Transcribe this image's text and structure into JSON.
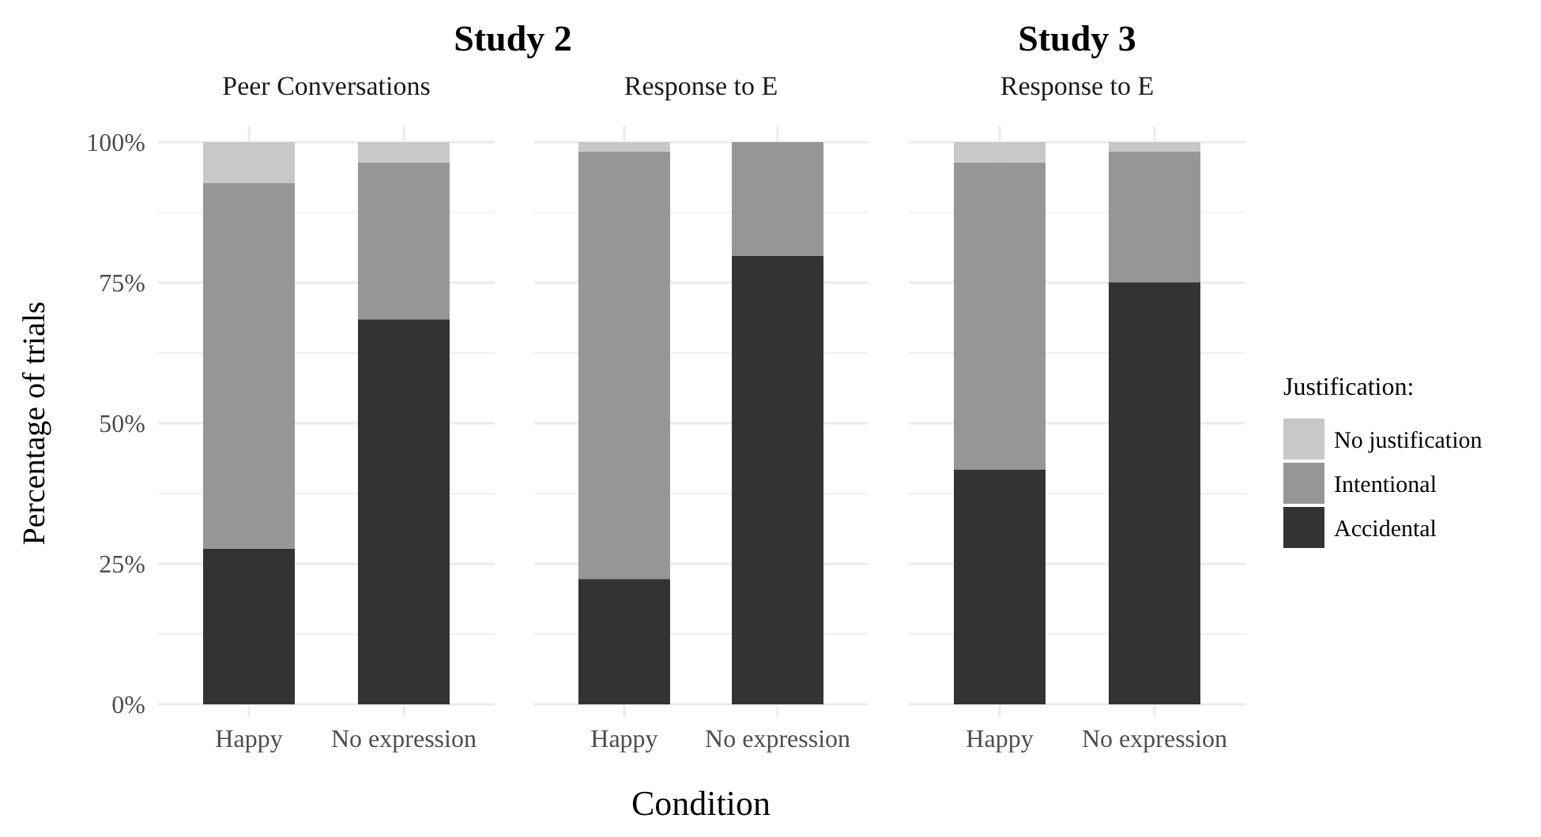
{
  "chart_data": [
    {
      "type": "bar",
      "title": "Study 2",
      "subtitle": "Peer Conversations",
      "ylabel": "Percentage of trials",
      "categories": [
        "Happy",
        "No expression"
      ],
      "stacked": true,
      "ylim": [
        0,
        100
      ],
      "yticks": [
        {
          "value": 0,
          "label": "0%"
        },
        {
          "value": 12.5,
          "label": null
        },
        {
          "value": 25,
          "label": "25%"
        },
        {
          "value": 37.5,
          "label": null
        },
        {
          "value": 50,
          "label": "50%"
        },
        {
          "value": 62.5,
          "label": null
        },
        {
          "value": 75,
          "label": "75%"
        },
        {
          "value": 87.5,
          "label": null
        },
        {
          "value": 100,
          "label": "100%"
        }
      ],
      "grid": true,
      "legend": false,
      "series": [
        {
          "color": "#333333",
          "values": [
            27.7,
            68.5
          ]
        },
        {
          "color": "#969696",
          "values": [
            65.0,
            27.9
          ]
        },
        {
          "color": "#c8c8c8",
          "values": [
            7.3,
            3.6
          ]
        }
      ]
    },
    {
      "type": "bar",
      "subtitle": "Response to E",
      "xlabel": "Condition",
      "categories": [
        "Happy",
        "No expression"
      ],
      "stacked": true,
      "ylim": [
        0,
        100
      ],
      "yticks": [
        {
          "value": 0,
          "label": null
        },
        {
          "value": 12.5,
          "label": null
        },
        {
          "value": 25,
          "label": null
        },
        {
          "value": 37.5,
          "label": null
        },
        {
          "value": 50,
          "label": null
        },
        {
          "value": 62.5,
          "label": null
        },
        {
          "value": 75,
          "label": null
        },
        {
          "value": 87.5,
          "label": null
        },
        {
          "value": 100,
          "label": null
        }
      ],
      "grid": true,
      "legend": false,
      "tick_labels": "x",
      "series": [
        {
          "color": "#333333",
          "values": [
            22.3,
            79.8
          ]
        },
        {
          "color": "#969696",
          "values": [
            76.0,
            20.2
          ]
        },
        {
          "color": "#c8c8c8",
          "values": [
            1.7,
            0
          ]
        }
      ]
    },
    {
      "type": "bar",
      "title": "Study 3",
      "subtitle": "Response to E",
      "legend_title": "Justification:",
      "categories": [
        "Happy",
        "No expression"
      ],
      "stacked": true,
      "ylim": [
        0,
        100
      ],
      "yticks": [
        {
          "value": 0,
          "label": null
        },
        {
          "value": 12.5,
          "label": null
        },
        {
          "value": 25,
          "label": null
        },
        {
          "value": 37.5,
          "label": null
        },
        {
          "value": 50,
          "label": null
        },
        {
          "value": 62.5,
          "label": null
        },
        {
          "value": 75,
          "label": null
        },
        {
          "value": 87.5,
          "label": null
        },
        {
          "value": 100,
          "label": null
        }
      ],
      "grid": true,
      "legend": "right",
      "tick_labels": "x",
      "series": [
        {
          "name": "Accidental",
          "color": "#333333",
          "values": [
            41.8,
            75.1
          ]
        },
        {
          "name": "Intentional",
          "color": "#969696",
          "values": [
            54.6,
            23.2
          ]
        },
        {
          "name": "No justification",
          "color": "#c8c8c8",
          "values": [
            3.6,
            1.7
          ]
        }
      ]
    }
  ]
}
